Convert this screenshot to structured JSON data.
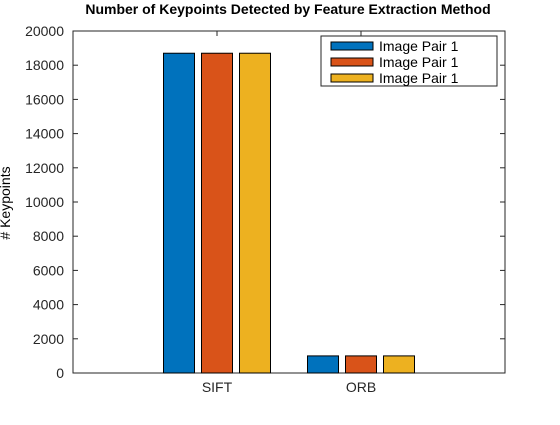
{
  "chart_data": {
    "type": "bar",
    "title": "Number of Keypoints Detected by Feature Extraction Method",
    "xlabel": "",
    "ylabel": "# Keypoints",
    "categories": [
      "SIFT",
      "ORB"
    ],
    "series": [
      {
        "name": "Image Pair 1",
        "values": [
          18700,
          1000
        ],
        "color": "#0072BD"
      },
      {
        "name": "Image Pair 1",
        "values": [
          18700,
          1000
        ],
        "color": "#D95319"
      },
      {
        "name": "Image Pair 1",
        "values": [
          18700,
          1000
        ],
        "color": "#EDB120"
      }
    ],
    "ylim": [
      0,
      20000
    ],
    "yticks": [
      0,
      2000,
      4000,
      6000,
      8000,
      10000,
      12000,
      14000,
      16000,
      18000,
      20000
    ],
    "xlim": [
      0,
      3
    ],
    "xticks": [
      1,
      2
    ],
    "grid": false,
    "legend_position": "top-right"
  }
}
